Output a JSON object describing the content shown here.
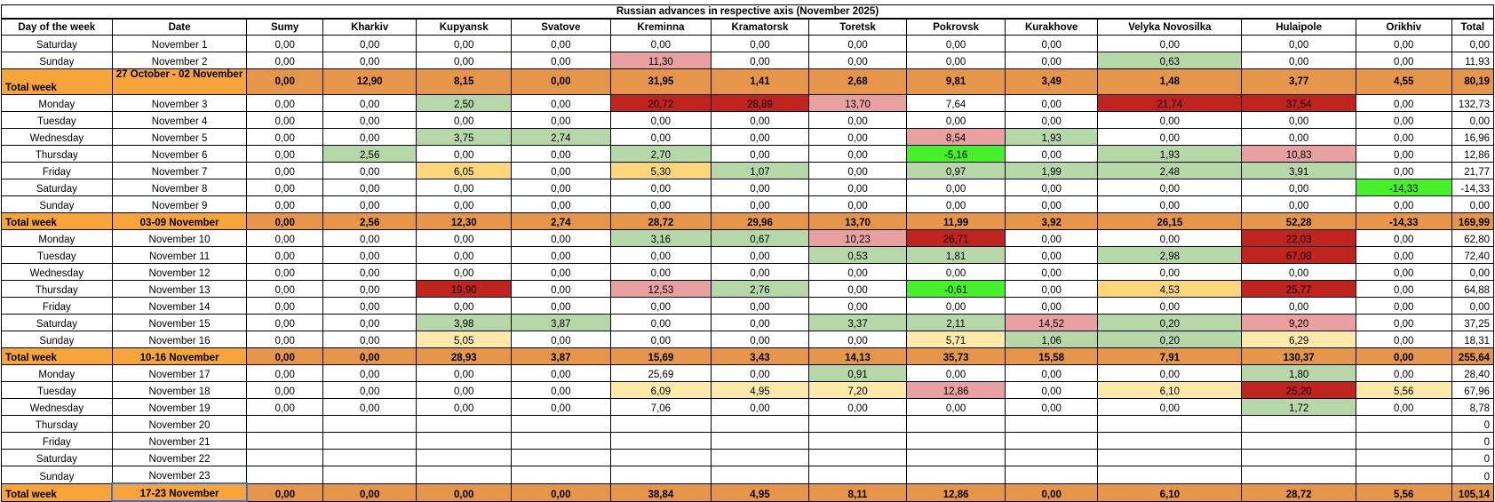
{
  "title": "Russian advances in respective axis (November 2025)",
  "headers": [
    "Day of the week",
    "Date",
    "Sumy",
    "Kharkiv",
    "Kupyansk",
    "Svatove",
    "Kreminna",
    "Kramatorsk",
    "Toretsk",
    "Pokrovsk",
    "Kurakhove",
    "Velyka Novosilka",
    "Hulaipole",
    "Orikhiv",
    "Total"
  ],
  "colors": {
    "red": "#c0241f",
    "pink": "#e8a0a0",
    "light_green": "#b6d7a8",
    "bright_green": "#46f02a",
    "yellow": "#fbd67a",
    "light_yellow": "#fde9a8",
    "total_row": "#e6964a",
    "total_label": "#f7a43a",
    "selection": "#3a6fd8"
  },
  "rows": [
    {
      "type": "day",
      "day": "Saturday",
      "date": "November 1",
      "values": [
        "0,00",
        "0,00",
        "0,00",
        "0,00",
        "0,00",
        "0,00",
        "0,00",
        "0,00",
        "0,00",
        "0,00",
        "0,00",
        "0,00"
      ],
      "colors": [
        "",
        "",
        "",
        "",
        "",
        "",
        "",
        "",
        "",
        "",
        "",
        ""
      ],
      "total": "0,00"
    },
    {
      "type": "day",
      "day": "Sunday",
      "date": "November 2",
      "values": [
        "0,00",
        "0,00",
        "0,00",
        "0,00",
        "11,30",
        "0,00",
        "0,00",
        "0,00",
        "0,00",
        "0,63",
        "0,00",
        "0,00"
      ],
      "colors": [
        "",
        "",
        "",
        "",
        "pink",
        "",
        "",
        "",
        "",
        "lgreen",
        "",
        ""
      ],
      "total": "11,93"
    },
    {
      "type": "total",
      "day": "Total week",
      "date": "27 October - 02 November",
      "tall": true,
      "values": [
        "0,00",
        "12,90",
        "8,15",
        "0,00",
        "31,95",
        "1,41",
        "2,68",
        "9,81",
        "3,49",
        "1,48",
        "3,77",
        "4,55"
      ],
      "total": "80,19"
    },
    {
      "type": "day",
      "day": "Monday",
      "date": "November 3",
      "values": [
        "0,00",
        "0,00",
        "2,50",
        "0,00",
        "20,72",
        "28,89",
        "13,70",
        "7,64",
        "0,00",
        "21,74",
        "37,54",
        "0,00"
      ],
      "colors": [
        "",
        "",
        "lgreen",
        "",
        "red",
        "red",
        "pink",
        "",
        "",
        "red",
        "red",
        ""
      ],
      "total": "132,73"
    },
    {
      "type": "day",
      "day": "Tuesday",
      "date": "November 4",
      "values": [
        "0,00",
        "0,00",
        "0,00",
        "0,00",
        "0,00",
        "0,00",
        "0,00",
        "0,00",
        "0,00",
        "0,00",
        "0,00",
        "0,00"
      ],
      "colors": [
        "",
        "",
        "",
        "",
        "",
        "",
        "",
        "",
        "",
        "",
        "",
        ""
      ],
      "total": "0,00"
    },
    {
      "type": "day",
      "day": "Wednesday",
      "date": "November 5",
      "values": [
        "0,00",
        "0,00",
        "3,75",
        "2,74",
        "0,00",
        "0,00",
        "0,00",
        "8,54",
        "1,93",
        "0,00",
        "0,00",
        "0,00"
      ],
      "colors": [
        "",
        "",
        "lgreen",
        "lgreen",
        "",
        "",
        "",
        "pink",
        "lgreen",
        "",
        "",
        ""
      ],
      "total": "16,96"
    },
    {
      "type": "day",
      "day": "Thursday",
      "date": "November 6",
      "values": [
        "0,00",
        "2,56",
        "0,00",
        "0,00",
        "2,70",
        "0,00",
        "0,00",
        "-5,16",
        "0,00",
        "1,93",
        "10,83",
        "0,00"
      ],
      "colors": [
        "",
        "lgreen",
        "",
        "",
        "lgreen",
        "",
        "",
        "bgreen",
        "",
        "lgreen",
        "pink",
        ""
      ],
      "total": "12,86"
    },
    {
      "type": "day",
      "day": "Friday",
      "date": "November 7",
      "values": [
        "0,00",
        "0,00",
        "6,05",
        "0,00",
        "5,30",
        "1,07",
        "0,00",
        "0,97",
        "1,99",
        "2,48",
        "3,91",
        "0,00"
      ],
      "colors": [
        "",
        "",
        "yellow",
        "",
        "yellow",
        "lgreen",
        "",
        "lgreen",
        "lgreen",
        "lgreen",
        "lgreen",
        ""
      ],
      "total": "21,77"
    },
    {
      "type": "day",
      "day": "Saturday",
      "date": "November 8",
      "values": [
        "0,00",
        "0,00",
        "0,00",
        "0,00",
        "0,00",
        "0,00",
        "0,00",
        "0,00",
        "0,00",
        "0,00",
        "0,00",
        "-14,33"
      ],
      "colors": [
        "",
        "",
        "",
        "",
        "",
        "",
        "",
        "",
        "",
        "",
        "",
        "bgreen"
      ],
      "total": "-14,33"
    },
    {
      "type": "day",
      "day": "Sunday",
      "date": "November 9",
      "values": [
        "0,00",
        "0,00",
        "0,00",
        "0,00",
        "0,00",
        "0,00",
        "0,00",
        "0,00",
        "0,00",
        "0,00",
        "0,00",
        "0,00"
      ],
      "colors": [
        "",
        "",
        "",
        "",
        "",
        "",
        "",
        "",
        "",
        "",
        "",
        ""
      ],
      "total": "0,00"
    },
    {
      "type": "total",
      "day": "Total week",
      "date": "03-09 November",
      "values": [
        "0,00",
        "2,56",
        "12,30",
        "2,74",
        "28,72",
        "29,96",
        "13,70",
        "11,99",
        "3,92",
        "26,15",
        "52,28",
        "-14,33"
      ],
      "total": "169,99"
    },
    {
      "type": "day",
      "day": "Monday",
      "date": "November 10",
      "values": [
        "0,00",
        "0,00",
        "0,00",
        "0,00",
        "3,16",
        "0,67",
        "10,23",
        "26,71",
        "0,00",
        "0,00",
        "22,03",
        "0,00"
      ],
      "colors": [
        "",
        "",
        "",
        "",
        "lgreen",
        "lgreen",
        "pink",
        "red",
        "",
        "",
        "red",
        ""
      ],
      "total": "62,80"
    },
    {
      "type": "day",
      "day": "Tuesday",
      "date": "November 11",
      "values": [
        "0,00",
        "0,00",
        "0,00",
        "0,00",
        "0,00",
        "0,00",
        "0,53",
        "1,81",
        "0,00",
        "2,98",
        "67,08",
        "0,00"
      ],
      "colors": [
        "",
        "",
        "",
        "",
        "",
        "",
        "lgreen",
        "lgreen",
        "",
        "lgreen",
        "red",
        ""
      ],
      "total": "72,40"
    },
    {
      "type": "day",
      "day": "Wednesday",
      "date": "November 12",
      "values": [
        "0,00",
        "0,00",
        "0,00",
        "0,00",
        "0,00",
        "0,00",
        "0,00",
        "0,00",
        "0,00",
        "0,00",
        "0,00",
        "0,00"
      ],
      "colors": [
        "",
        "",
        "",
        "",
        "",
        "",
        "",
        "",
        "",
        "",
        "",
        ""
      ],
      "total": "0,00"
    },
    {
      "type": "day",
      "day": "Thursday",
      "date": "November 13",
      "values": [
        "0,00",
        "0,00",
        "19,90",
        "0,00",
        "12,53",
        "2,76",
        "0,00",
        "-0,61",
        "0,00",
        "4,53",
        "25,77",
        "0,00"
      ],
      "colors": [
        "",
        "",
        "red",
        "",
        "pink",
        "lgreen",
        "",
        "bgreen",
        "",
        "yellow",
        "red",
        ""
      ],
      "total": "64,88"
    },
    {
      "type": "day",
      "day": "Friday",
      "date": "November 14",
      "values": [
        "0,00",
        "0,00",
        "0,00",
        "0,00",
        "0,00",
        "0,00",
        "0,00",
        "0,00",
        "0,00",
        "0,00",
        "0,00",
        "0,00"
      ],
      "colors": [
        "",
        "",
        "",
        "",
        "",
        "",
        "",
        "",
        "",
        "",
        "",
        ""
      ],
      "total": "0,00"
    },
    {
      "type": "day",
      "day": "Saturday",
      "date": "November 15",
      "values": [
        "0,00",
        "0,00",
        "3,98",
        "3,87",
        "0,00",
        "0,00",
        "3,37",
        "2,11",
        "14,52",
        "0,20",
        "9,20",
        "0,00"
      ],
      "colors": [
        "",
        "",
        "lgreen",
        "lgreen",
        "",
        "",
        "lgreen",
        "lgreen",
        "pink",
        "lgreen",
        "pink",
        ""
      ],
      "total": "37,25"
    },
    {
      "type": "day",
      "day": "Sunday",
      "date": "November 16",
      "values": [
        "0,00",
        "0,00",
        "5,05",
        "0,00",
        "0,00",
        "0,00",
        "0,00",
        "5,71",
        "1,06",
        "0,20",
        "6,29",
        "0,00"
      ],
      "colors": [
        "",
        "",
        "lyellow",
        "",
        "",
        "",
        "",
        "lyellow",
        "lgreen",
        "lgreen",
        "lyellow",
        ""
      ],
      "total": "18,31"
    },
    {
      "type": "total",
      "day": "Total week",
      "date": "10-16 November",
      "values": [
        "0,00",
        "0,00",
        "28,93",
        "3,87",
        "15,69",
        "3,43",
        "14,13",
        "35,73",
        "15,58",
        "7,91",
        "130,37",
        "0,00"
      ],
      "total": "255,64"
    },
    {
      "type": "day",
      "day": "Monday",
      "date": "November 17",
      "values": [
        "0,00",
        "0,00",
        "0,00",
        "0,00",
        "25,69",
        "0,00",
        "0,91",
        "0,00",
        "0,00",
        "0,00",
        "1,80",
        "0,00"
      ],
      "colors": [
        "",
        "",
        "",
        "",
        "",
        "",
        "lgreen",
        "",
        "",
        "",
        "lgreen",
        ""
      ],
      "total": "28,40"
    },
    {
      "type": "day",
      "day": "Tuesday",
      "date": "November 18",
      "values": [
        "0,00",
        "0,00",
        "0,00",
        "0,00",
        "6,09",
        "4,95",
        "7,20",
        "12,86",
        "0,00",
        "6,10",
        "25,20",
        "5,56"
      ],
      "colors": [
        "",
        "",
        "",
        "",
        "lyellow",
        "lyellow",
        "lyellow",
        "pink",
        "",
        "lyellow",
        "red",
        "lyellow"
      ],
      "total": "67,96"
    },
    {
      "type": "day",
      "day": "Wednesday",
      "date": "November 19",
      "values": [
        "0,00",
        "0,00",
        "0,00",
        "0,00",
        "7,06",
        "0,00",
        "0,00",
        "0,00",
        "0,00",
        "0,00",
        "1,72",
        "0,00"
      ],
      "colors": [
        "",
        "",
        "",
        "",
        "",
        "",
        "",
        "",
        "",
        "",
        "lgreen",
        ""
      ],
      "total": "8,78"
    },
    {
      "type": "day",
      "day": "Thursday",
      "date": "November 20",
      "values": [
        "",
        "",
        "",
        "",
        "",
        "",
        "",
        "",
        "",
        "",
        "",
        ""
      ],
      "colors": [
        "",
        "",
        "",
        "",
        "",
        "",
        "",
        "",
        "",
        "",
        "",
        ""
      ],
      "total": "0"
    },
    {
      "type": "day",
      "day": "Friday",
      "date": "November 21",
      "values": [
        "",
        "",
        "",
        "",
        "",
        "",
        "",
        "",
        "",
        "",
        "",
        ""
      ],
      "colors": [
        "",
        "",
        "",
        "",
        "",
        "",
        "",
        "",
        "",
        "",
        "",
        ""
      ],
      "total": "0"
    },
    {
      "type": "day",
      "day": "Saturday",
      "date": "November 22",
      "values": [
        "",
        "",
        "",
        "",
        "",
        "",
        "",
        "",
        "",
        "",
        "",
        ""
      ],
      "colors": [
        "",
        "",
        "",
        "",
        "",
        "",
        "",
        "",
        "",
        "",
        "",
        ""
      ],
      "total": "0"
    },
    {
      "type": "day",
      "day": "Sunday",
      "date": "November 23",
      "values": [
        "",
        "",
        "",
        "",
        "",
        "",
        "",
        "",
        "",
        "",
        "",
        ""
      ],
      "colors": [
        "",
        "",
        "",
        "",
        "",
        "",
        "",
        "",
        "",
        "",
        "",
        ""
      ],
      "total": "0"
    },
    {
      "type": "total",
      "day": "Total week",
      "date": "17-23 November",
      "selected": true,
      "values": [
        "0,00",
        "0,00",
        "0,00",
        "0,00",
        "38,84",
        "4,95",
        "8,11",
        "12,86",
        "0,00",
        "6,10",
        "28,72",
        "5,56"
      ],
      "total": "105,14"
    }
  ]
}
